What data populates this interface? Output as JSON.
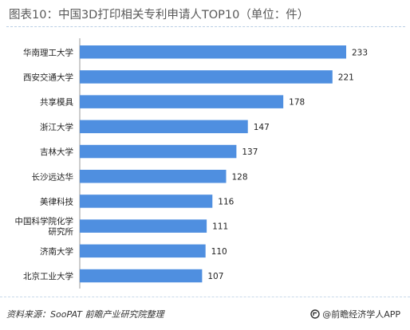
{
  "title": "图表10：中国3D打印相关专利申请人TOP10（单位：件）",
  "footer": {
    "source": "资料来源：SooPAT 前瞻产业研究院整理",
    "brand": "@前瞻经济学人APP"
  },
  "colors": {
    "bar": "#4f8fe0",
    "axis": "#999999"
  },
  "chart_data": {
    "type": "bar",
    "orientation": "horizontal",
    "categories": [
      "华南理工大学",
      "西安交通大学",
      "共享模具",
      "浙江大学",
      "吉林大学",
      "长沙远达华",
      "美律科技",
      "中国科学院化学研究所",
      "济南大学",
      "北京工业大学"
    ],
    "category_lines": [
      [
        "华南理工大学"
      ],
      [
        "西安交通大学"
      ],
      [
        "共享模具"
      ],
      [
        "浙江大学"
      ],
      [
        "吉林大学"
      ],
      [
        "长沙远达华"
      ],
      [
        "美律科技"
      ],
      [
        "中国科学院化学",
        "研究所"
      ],
      [
        "济南大学"
      ],
      [
        "北京工业大学"
      ]
    ],
    "values": [
      233,
      221,
      178,
      147,
      137,
      128,
      116,
      111,
      110,
      107
    ],
    "unit": "件",
    "xlim": [
      0,
      250
    ],
    "grid": false,
    "legend": "none"
  }
}
